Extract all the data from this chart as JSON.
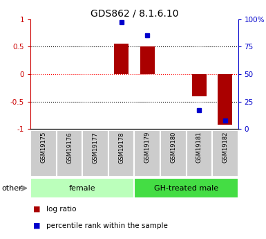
{
  "title": "GDS862 / 8.1.6.10",
  "samples": [
    "GSM19175",
    "GSM19176",
    "GSM19177",
    "GSM19178",
    "GSM19179",
    "GSM19180",
    "GSM19181",
    "GSM19182"
  ],
  "log_ratio": [
    0.0,
    0.0,
    0.0,
    0.55,
    0.5,
    0.0,
    -0.4,
    -0.92
  ],
  "percentile_rank": [
    null,
    null,
    null,
    97.0,
    85.0,
    null,
    17.0,
    8.0
  ],
  "groups": [
    {
      "label": "female",
      "start": 0,
      "end": 3,
      "color": "#bbffbb"
    },
    {
      "label": "GH-treated male",
      "start": 4,
      "end": 7,
      "color": "#44dd44"
    }
  ],
  "bar_color": "#aa0000",
  "dot_color": "#0000cc",
  "ylim_left": [
    -1.0,
    1.0
  ],
  "ylim_right": [
    0,
    100
  ],
  "left_ticks": [
    -1,
    -0.5,
    0,
    0.5,
    1
  ],
  "right_ticks": [
    0,
    25,
    50,
    75,
    100
  ],
  "left_axis_color": "#cc0000",
  "right_axis_color": "#0000cc",
  "other_label": "other",
  "legend_items": [
    {
      "label": "log ratio",
      "color": "#aa0000"
    },
    {
      "label": "percentile rank within the sample",
      "color": "#0000cc"
    }
  ],
  "fig_width": 3.85,
  "fig_height": 3.45,
  "dpi": 100
}
